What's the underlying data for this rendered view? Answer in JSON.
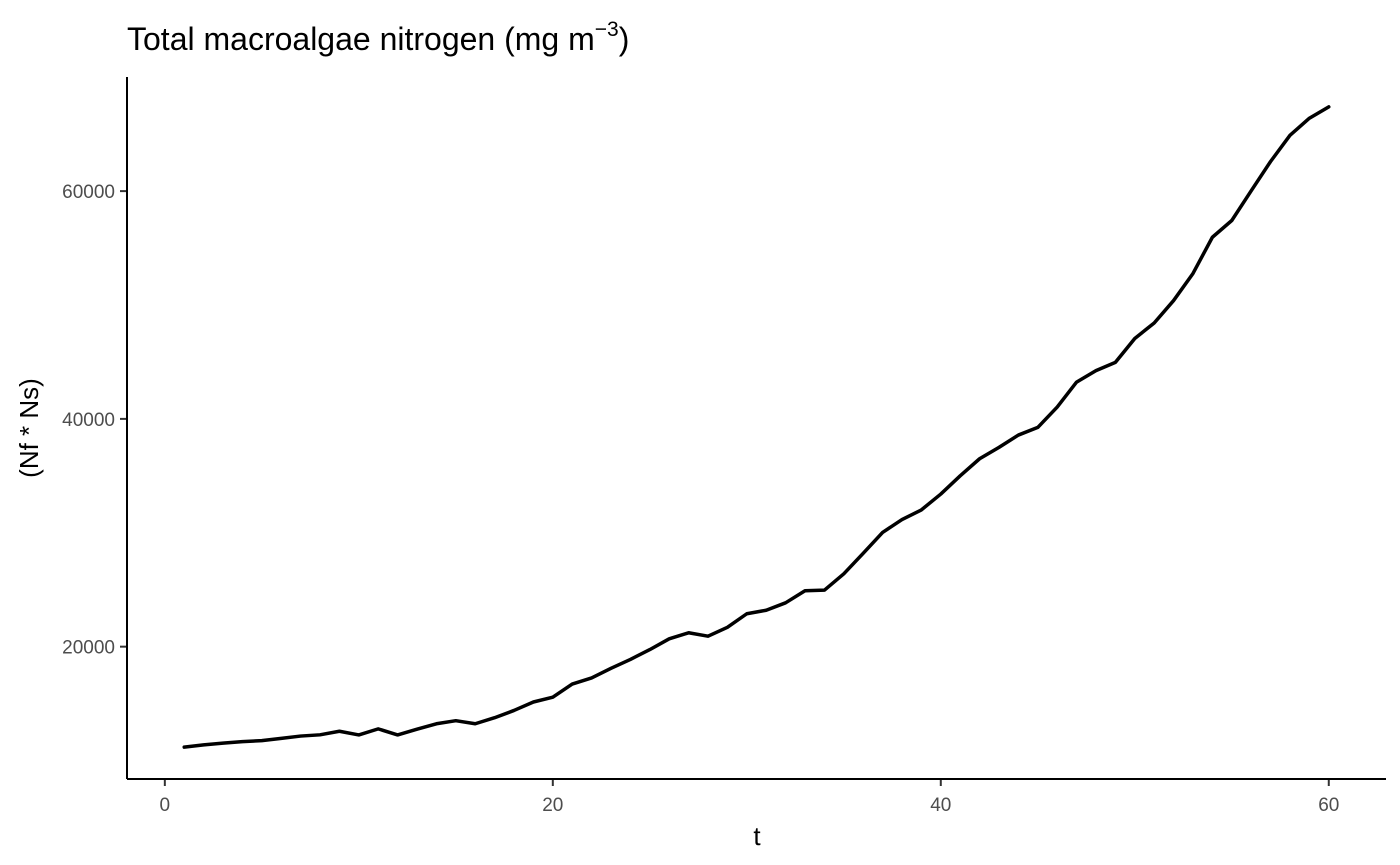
{
  "chart_data": {
    "type": "line",
    "title": {
      "text": "Total macroalgae nitrogen (mg m",
      "superscript": "−3",
      "closing": ")"
    },
    "xlabel": "t",
    "ylabel": "(Nf * Ns)",
    "xlim": [
      -1.95,
      62.95
    ],
    "ylim": [
      8380,
      70020
    ],
    "x_ticks": [
      0,
      20,
      40,
      60
    ],
    "x_tick_labels": [
      "0",
      "20",
      "40",
      "60"
    ],
    "y_ticks": [
      20000,
      40000,
      60000
    ],
    "y_tick_labels": [
      "20000",
      "40000",
      "60000"
    ],
    "grid": false,
    "legend": "none",
    "colors": {
      "line": "#000000",
      "axis": "#000000",
      "tick_label": "#4d4d4d"
    },
    "x": [
      1,
      2,
      3,
      4,
      5,
      6,
      7,
      8,
      9,
      10,
      11,
      12,
      13,
      14,
      15,
      16,
      17,
      18,
      19,
      20,
      21,
      22,
      23,
      24,
      25,
      26,
      27,
      28,
      29,
      30,
      31,
      32,
      33,
      34,
      35,
      36,
      37,
      38,
      39,
      40,
      41,
      42,
      43,
      44,
      45,
      46,
      47,
      48,
      49,
      50,
      51,
      52,
      53,
      54,
      55,
      56,
      57,
      58,
      59,
      60
    ],
    "series": [
      {
        "values": [
          11180,
          11380,
          11530,
          11660,
          11750,
          11950,
          12150,
          12260,
          12570,
          12250,
          12780,
          12250,
          12750,
          13230,
          13500,
          13230,
          13760,
          14400,
          15140,
          15560,
          16720,
          17250,
          18100,
          18880,
          19740,
          20690,
          21220,
          20920,
          21700,
          22890,
          23200,
          23850,
          24910,
          24960,
          26400,
          28200,
          30030,
          31160,
          32010,
          33400,
          35000,
          36500,
          37500,
          38580,
          39250,
          41040,
          43230,
          44240,
          44960,
          47060,
          48420,
          50390,
          52770,
          55950,
          57420,
          60030,
          62600,
          64900,
          66400,
          67400
        ]
      }
    ]
  }
}
